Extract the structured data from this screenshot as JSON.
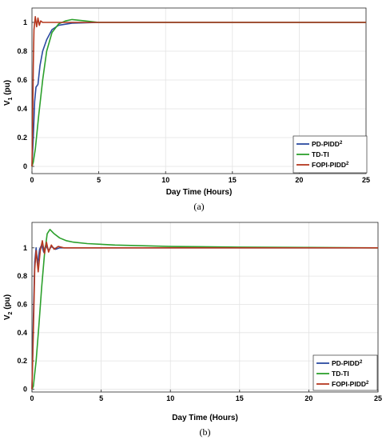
{
  "chart_data": [
    {
      "type": "line",
      "panel_label": "(a)",
      "xlabel": "Day Time (Hours)",
      "ylabel_main": "V",
      "ylabel_sub": "1",
      "ylabel_unit": " (pu)",
      "xlim": [
        0,
        25
      ],
      "ylim": [
        -0.05,
        1.1
      ],
      "x_ticks": [
        0,
        5,
        10,
        15,
        20,
        25
      ],
      "y_ticks": [
        0,
        0.2,
        0.4,
        0.6,
        0.8,
        1
      ],
      "x_tick_labels": [
        "0",
        "5",
        "10",
        "15",
        "20",
        "25"
      ],
      "y_tick_labels": [
        "0",
        "0.2",
        "0.4",
        "0.6",
        "0.8",
        "1"
      ],
      "grid": true,
      "legend_position": "bottom-right",
      "series": [
        {
          "name": "PD-PIDD",
          "name_sup": "2",
          "color": "#2b4aa0",
          "points": [
            [
              0,
              0
            ],
            [
              0.1,
              0.2
            ],
            [
              0.2,
              0.45
            ],
            [
              0.3,
              0.55
            ],
            [
              0.45,
              0.57
            ],
            [
              0.6,
              0.7
            ],
            [
              0.8,
              0.8
            ],
            [
              1.1,
              0.88
            ],
            [
              1.5,
              0.95
            ],
            [
              2,
              0.98
            ],
            [
              3,
              0.995
            ],
            [
              5,
              1.0
            ],
            [
              10,
              1.0
            ],
            [
              25,
              1.0
            ]
          ]
        },
        {
          "name": "TD-TI",
          "name_sup": "",
          "color": "#2ca02c",
          "points": [
            [
              0,
              0
            ],
            [
              0.1,
              0.03
            ],
            [
              0.25,
              0.12
            ],
            [
              0.5,
              0.35
            ],
            [
              0.8,
              0.6
            ],
            [
              1.1,
              0.8
            ],
            [
              1.5,
              0.93
            ],
            [
              2,
              0.99
            ],
            [
              2.5,
              1.01
            ],
            [
              3,
              1.02
            ],
            [
              4,
              1.01
            ],
            [
              5,
              1.0
            ],
            [
              8,
              1.0
            ],
            [
              25,
              1.0
            ]
          ]
        },
        {
          "name": "FOPI-PIDD",
          "name_sup": "2",
          "color": "#b5381f",
          "points": [
            [
              0,
              0
            ],
            [
              0.05,
              0.3
            ],
            [
              0.1,
              0.7
            ],
            [
              0.15,
              0.95
            ],
            [
              0.25,
              1.04
            ],
            [
              0.35,
              0.97
            ],
            [
              0.45,
              1.03
            ],
            [
              0.55,
              0.98
            ],
            [
              0.65,
              1.01
            ],
            [
              0.8,
              1.0
            ],
            [
              1,
              1.0
            ],
            [
              25,
              1.0
            ]
          ]
        }
      ]
    },
    {
      "type": "line",
      "panel_label": "(b)",
      "xlabel": "Day Time (Hours)",
      "ylabel_main": "V",
      "ylabel_sub": "2",
      "ylabel_unit": " (pu)",
      "xlim": [
        0,
        25
      ],
      "ylim": [
        -0.02,
        1.18
      ],
      "x_ticks": [
        0,
        5,
        10,
        15,
        20,
        25
      ],
      "y_ticks": [
        0,
        0.2,
        0.4,
        0.6,
        0.8,
        1
      ],
      "x_tick_labels": [
        "0",
        "5",
        "10",
        "15",
        "20",
        "25"
      ],
      "y_tick_labels": [
        "0",
        "0.2",
        "0.4",
        "0.6",
        "0.8",
        "1"
      ],
      "grid": true,
      "legend_position": "bottom-right",
      "series": [
        {
          "name": "PD-PIDD",
          "name_sup": "2",
          "color": "#2b4aa0",
          "points": [
            [
              0,
              0
            ],
            [
              0.1,
              0.5
            ],
            [
              0.2,
              0.9
            ],
            [
              0.3,
              1.0
            ],
            [
              0.4,
              0.88
            ],
            [
              0.55,
              0.99
            ],
            [
              0.7,
              1.02
            ],
            [
              0.85,
              0.97
            ],
            [
              1,
              1.02
            ],
            [
              1.2,
              0.98
            ],
            [
              1.4,
              1.01
            ],
            [
              1.7,
              0.99
            ],
            [
              2,
              1.0
            ],
            [
              3,
              1.0
            ],
            [
              25,
              1.0
            ]
          ]
        },
        {
          "name": "TD-TI",
          "name_sup": "",
          "color": "#2ca02c",
          "points": [
            [
              0,
              0
            ],
            [
              0.1,
              0.02
            ],
            [
              0.3,
              0.2
            ],
            [
              0.5,
              0.45
            ],
            [
              0.7,
              0.72
            ],
            [
              0.9,
              0.95
            ],
            [
              1.1,
              1.1
            ],
            [
              1.3,
              1.13
            ],
            [
              1.6,
              1.1
            ],
            [
              2,
              1.07
            ],
            [
              2.5,
              1.05
            ],
            [
              3,
              1.04
            ],
            [
              4,
              1.03
            ],
            [
              6,
              1.02
            ],
            [
              10,
              1.01
            ],
            [
              15,
              1.005
            ],
            [
              20,
              1.003
            ],
            [
              25,
              1.0
            ]
          ]
        },
        {
          "name": "FOPI-PIDD",
          "name_sup": "2",
          "color": "#b5381f",
          "points": [
            [
              0,
              0
            ],
            [
              0.1,
              0.4
            ],
            [
              0.2,
              0.85
            ],
            [
              0.3,
              0.98
            ],
            [
              0.45,
              0.83
            ],
            [
              0.6,
              0.98
            ],
            [
              0.75,
              1.05
            ],
            [
              0.9,
              0.96
            ],
            [
              1.05,
              1.04
            ],
            [
              1.2,
              0.97
            ],
            [
              1.4,
              1.02
            ],
            [
              1.6,
              0.99
            ],
            [
              1.9,
              1.01
            ],
            [
              2.3,
              1.0
            ],
            [
              3,
              1.0
            ],
            [
              25,
              1.0
            ]
          ]
        }
      ]
    }
  ]
}
